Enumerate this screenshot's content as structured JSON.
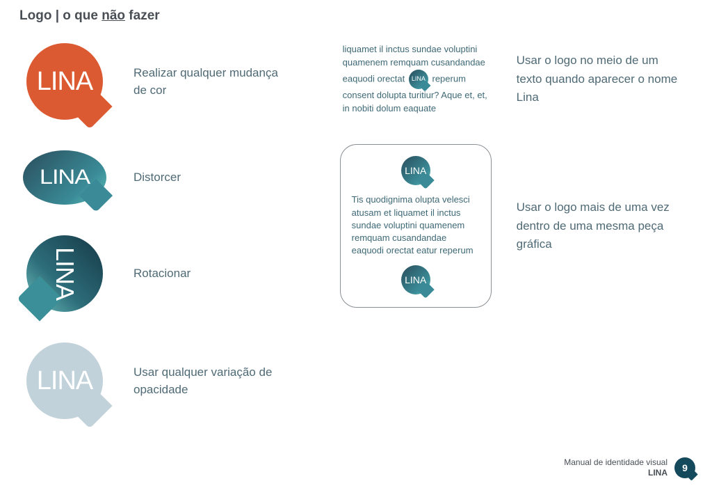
{
  "title": {
    "prefix": "Logo | o que ",
    "emph": "não",
    "suffix": " fazer"
  },
  "logo_text": "LINA",
  "colors": {
    "orange": "#dc5a32",
    "teal_dark": "#2a4d5c",
    "teal_mid": "#3a8b97",
    "teal_light": "#5fc1b9",
    "faded": "#c2d2da",
    "text_body": "#4f6a75",
    "text_heading": "#4a4f56",
    "card_border": "#8a8f94",
    "footer_badge": "#15495c"
  },
  "left_rules": [
    {
      "key": "color_change",
      "label": "Realizar qualquer mudança de cor"
    },
    {
      "key": "distort",
      "label": "Distorcer"
    },
    {
      "key": "rotate",
      "label": "Rotacionar"
    },
    {
      "key": "opacity",
      "label": "Usar qualquer variação de opacidade"
    }
  ],
  "right_rules": [
    {
      "key": "inline_text",
      "label": "Usar o logo no meio de um texto quando aparecer o nome Lina"
    },
    {
      "key": "multi_use",
      "label": "Usar o logo mais de uma vez dentro de uma mesma peça gráfica"
    }
  ],
  "inline_example": {
    "before": "liquamet il inctus sundae voluptini quamenem remquam cusandandae eaquodi orectat ",
    "after": " reperum consent dolupta turitiur? Aque et, et, in nobiti dolum eaquate"
  },
  "card_example": {
    "text": "Tis quodignima olupta velesci atusam et liquamet il inctus sundae voluptini quamenem remquam cusandandae eaquodi orectat eatur reperum"
  },
  "footer": {
    "line1": "Manual de identidade visual",
    "brand": "LINA",
    "page": "9"
  }
}
